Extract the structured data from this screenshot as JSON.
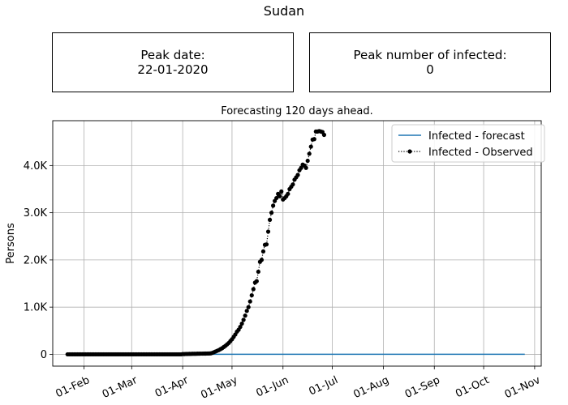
{
  "figure": {
    "suptitle": "Sudan",
    "peak_date_label": "Peak date:",
    "peak_date_value": "22-01-2020",
    "peak_infected_label": "Peak number of infected:",
    "peak_infected_value": "0"
  },
  "chart_data": {
    "type": "line",
    "title": "Forecasting 120 days ahead.",
    "xlabel": "",
    "ylabel": "Persons",
    "x_axis_type": "date",
    "xlim": [
      "2020-01-13",
      "2020-11-05"
    ],
    "ylim": [
      -250,
      4950
    ],
    "x_tick_labels": [
      {
        "date": "2020-02-01",
        "label": "01-Feb"
      },
      {
        "date": "2020-03-01",
        "label": "01-Mar"
      },
      {
        "date": "2020-04-01",
        "label": "01-Apr"
      },
      {
        "date": "2020-05-01",
        "label": "01-May"
      },
      {
        "date": "2020-06-01",
        "label": "01-Jun"
      },
      {
        "date": "2020-07-01",
        "label": "01-Jul"
      },
      {
        "date": "2020-08-01",
        "label": "01-Aug"
      },
      {
        "date": "2020-09-01",
        "label": "01-Sep"
      },
      {
        "date": "2020-10-01",
        "label": "01-Oct"
      },
      {
        "date": "2020-11-01",
        "label": "01-Nov"
      }
    ],
    "y_ticks": [
      {
        "value": 0,
        "label": "0"
      },
      {
        "value": 1000,
        "label": "1.0K"
      },
      {
        "value": 2000,
        "label": "2.0K"
      },
      {
        "value": 3000,
        "label": "3.0K"
      },
      {
        "value": 4000,
        "label": "4.0K"
      }
    ],
    "grid": true,
    "legend_position": "top-right",
    "series": [
      {
        "name": "Infected - forecast",
        "color": "#1f77b4",
        "style": "solid",
        "points": [
          {
            "x": "2020-04-17",
            "y": 0
          },
          {
            "x": "2020-10-26",
            "y": 0
          }
        ]
      },
      {
        "name": "Infected - Observed",
        "color": "#000000",
        "style": "dotted-with-markers",
        "x_start": "2020-01-22",
        "y": [
          0,
          0,
          0,
          0,
          0,
          0,
          0,
          0,
          0,
          0,
          0,
          0,
          0,
          0,
          0,
          0,
          0,
          0,
          0,
          0,
          0,
          0,
          0,
          0,
          0,
          0,
          0,
          0,
          0,
          0,
          0,
          0,
          0,
          0,
          0,
          0,
          0,
          0,
          0,
          0,
          0,
          0,
          0,
          0,
          0,
          0,
          0,
          0,
          0,
          0,
          0,
          0,
          0,
          0,
          0,
          0,
          0,
          0,
          0,
          0,
          0,
          0,
          0,
          0,
          0,
          0,
          0,
          0,
          0,
          0,
          5,
          5,
          8,
          8,
          10,
          10,
          12,
          12,
          12,
          14,
          14,
          15,
          15,
          16,
          16,
          17,
          18,
          20,
          30,
          45,
          60,
          75,
          90,
          110,
          130,
          155,
          180,
          210,
          240,
          280,
          320,
          370,
          420,
          480,
          520,
          580,
          650,
          730,
          820,
          920,
          1000,
          1120,
          1250,
          1380,
          1520,
          1550,
          1750,
          1960,
          2000,
          2180,
          2320,
          2330,
          2600,
          2850,
          3000,
          3150,
          3250,
          3310,
          3400,
          3350,
          3450,
          3280,
          3310,
          3350,
          3400,
          3500,
          3550,
          3600,
          3700,
          3750,
          3800,
          3900,
          3950,
          4020,
          4000,
          3950,
          4100,
          4250,
          4400,
          4550,
          4560,
          4720,
          4720,
          4730,
          4720,
          4710,
          4650
        ]
      }
    ]
  }
}
